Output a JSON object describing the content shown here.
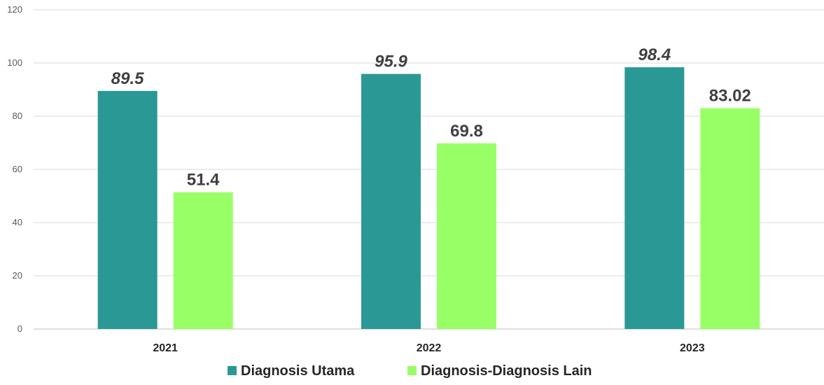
{
  "chart_data": {
    "type": "bar",
    "categories": [
      "2021",
      "2022",
      "2023"
    ],
    "series": [
      {
        "name": "Diagnosis Utama",
        "values": [
          89.5,
          95.9,
          98.4
        ],
        "labels": [
          "89.5",
          "95.9",
          "98.4"
        ],
        "color": "#2A9895",
        "label_style": "italic"
      },
      {
        "name": "Diagnosis-Diagnosis Lain",
        "values": [
          51.4,
          69.8,
          83.02
        ],
        "labels": [
          "51.4",
          "69.8",
          "83.02"
        ],
        "color": "#99FF66",
        "label_style": "normal"
      }
    ],
    "ylim": [
      0,
      120
    ],
    "yticks": [
      0,
      20,
      40,
      60,
      80,
      100,
      120
    ],
    "grid": true,
    "legend": "bottom-center",
    "title": "",
    "xlabel": "",
    "ylabel": ""
  }
}
